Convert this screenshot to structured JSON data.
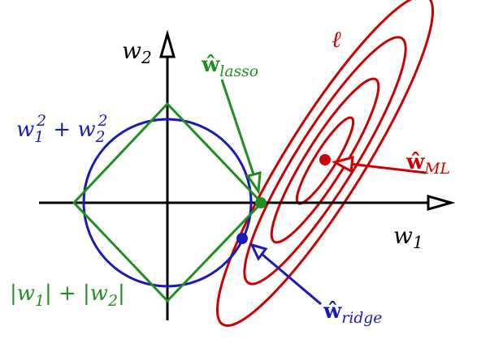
{
  "colors": {
    "axes": "#000000",
    "l2_ball": "#1a1ab8",
    "l1_ball": "#1f8f1f",
    "loss_contours": "#cc0000",
    "ridge": "#1a1ab8",
    "lasso": "#1f8f1f",
    "ml": "#cc0000"
  },
  "labels": {
    "w2_axis": {
      "base": "w",
      "sub": "2"
    },
    "w1_axis": {
      "base": "w",
      "sub": "1"
    },
    "loss": "ℓ",
    "l2_norm": {
      "a": "w",
      "a_sub": "1",
      "a_sup": "2",
      "op": " + ",
      "b": "w",
      "b_sub": "2",
      "b_sup": "2"
    },
    "l1_norm": {
      "bar": "|",
      "a": "w",
      "a_sub": "1",
      "op": " + ",
      "b": "w",
      "b_sub": "2"
    },
    "w_lasso": {
      "base": "ŵ",
      "sub": "lasso"
    },
    "w_ridge": {
      "base": "ŵ",
      "sub": "ridge"
    },
    "w_ml": {
      "base": "ŵ",
      "sub": "ML"
    }
  }
}
